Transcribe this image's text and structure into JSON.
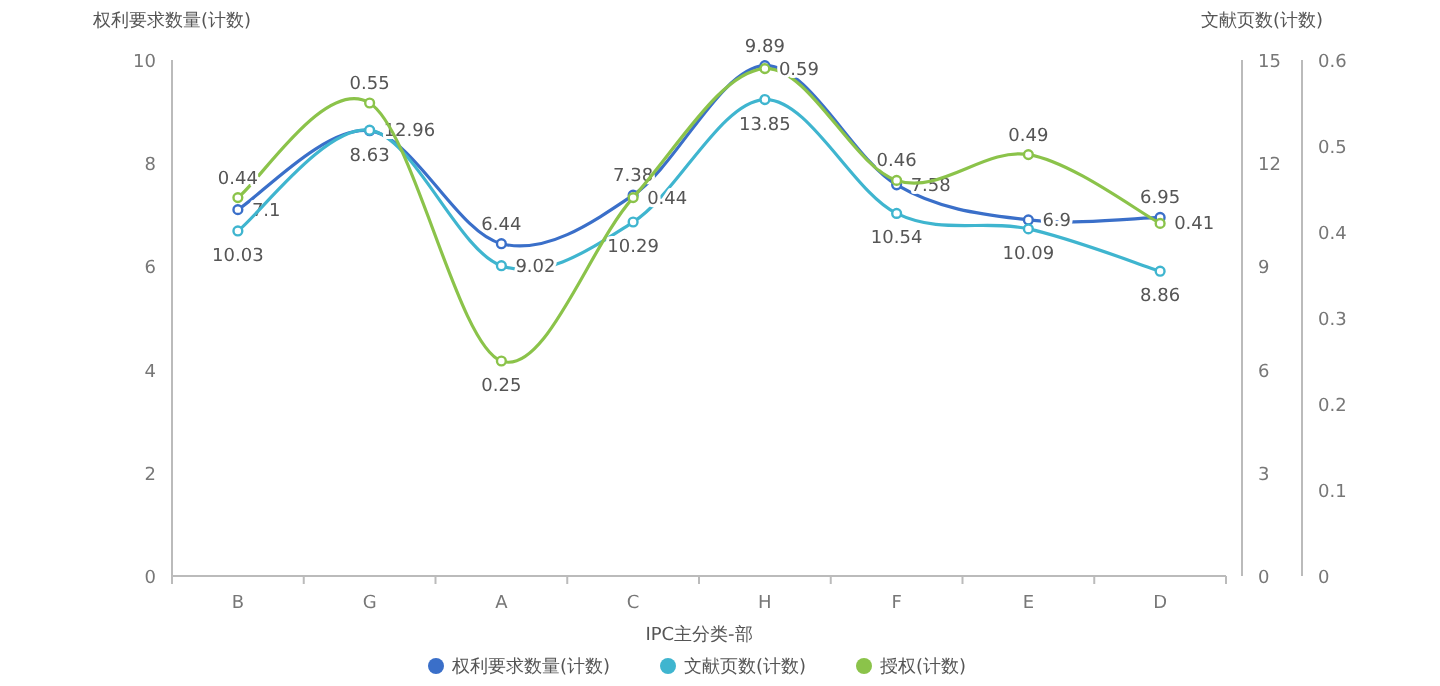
{
  "chart_data": {
    "type": "line",
    "xlabel": "IPC主分类-部",
    "ylabel": "权利要求数量(计数)",
    "y2label": "文献页数(计数)",
    "categories": [
      "B",
      "G",
      "A",
      "C",
      "H",
      "F",
      "E",
      "D"
    ],
    "series": [
      {
        "name": "权利要求数量(计数)",
        "color": "#3a6fc9",
        "axis": "y",
        "values": [
          7.1,
          8.63,
          6.44,
          7.38,
          9.89,
          7.58,
          6.9,
          6.95
        ]
      },
      {
        "name": "文献页数(计数)",
        "color": "#3fb5cf",
        "axis": "y2",
        "values": [
          10.03,
          12.96,
          9.02,
          10.29,
          13.85,
          10.54,
          10.09,
          8.86
        ]
      },
      {
        "name": "授权(计数)",
        "color": "#8bc34a",
        "axis": "y3",
        "values": [
          0.44,
          0.55,
          0.25,
          0.44,
          0.59,
          0.46,
          0.49,
          0.41
        ]
      }
    ],
    "ylim": [
      0,
      10
    ],
    "yticks": [
      0,
      2,
      4,
      6,
      8,
      10
    ],
    "y2lim": [
      0,
      15
    ],
    "y2ticks": [
      0,
      3,
      6,
      9,
      12,
      15
    ],
    "y3lim": [
      0,
      0.6
    ],
    "y3ticks": [
      0,
      0.1,
      0.2,
      0.3,
      0.4,
      0.5,
      0.6
    ],
    "data_labels": true,
    "legend": "bottom",
    "marker": "circle"
  }
}
